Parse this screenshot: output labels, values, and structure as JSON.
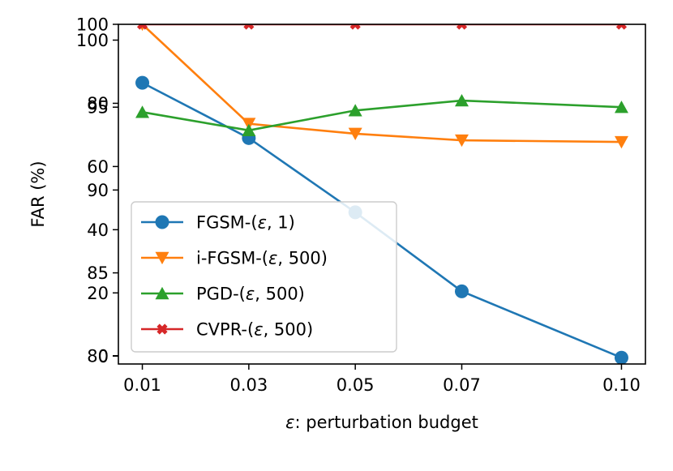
{
  "chart_data": {
    "type": "line",
    "title": "",
    "xlabel_symbol": "ε",
    "xlabel_rest": ": perturbation budget",
    "ylabel": "FAR (%)",
    "x": [
      0.01,
      0.03,
      0.05,
      0.07,
      0.1
    ],
    "x_tick_labels": [
      "0.01",
      "0.03",
      "0.05",
      "0.07",
      "0.10"
    ],
    "xlim": [
      0.0055,
      0.1045
    ],
    "left_axis": {
      "ylim": [
        -2.5,
        105
      ],
      "ticks": [
        0,
        20,
        40,
        60,
        80,
        100
      ],
      "tick_labels": [
        "0",
        "20",
        "40",
        "60",
        "80",
        "100"
      ]
    },
    "right_axis": {
      "ylim": [
        79.5,
        100.0
      ],
      "ticks": [
        80,
        85,
        90,
        95,
        100
      ],
      "tick_labels": [
        "80",
        "85",
        "90",
        "95",
        "100"
      ]
    },
    "series": [
      {
        "name": "FGSM-",
        "sym": "ε",
        "tail": ", 1)",
        "color": "#1f77b4",
        "marker": "circle",
        "axis": "left",
        "values": [
          86.5,
          69.0,
          45.5,
          20.5,
          -0.5
        ]
      },
      {
        "name": "i-FGSM-",
        "sym": "ε",
        "tail": ", 500)",
        "color": "#ff7f0e",
        "marker": "triangle-down",
        "axis": "right",
        "values": [
          100.0,
          94.0,
          93.4,
          93.0,
          92.9
        ]
      },
      {
        "name": "PGD-",
        "sym": "ε",
        "tail": ", 500)",
        "color": "#2ca02c",
        "marker": "triangle-up",
        "axis": "right",
        "values": [
          94.7,
          93.6,
          94.8,
          95.4,
          95.0
        ]
      },
      {
        "name": "CVPR-",
        "sym": "ε",
        "tail": ", 500)",
        "color": "#d62728",
        "marker": "x",
        "axis": "right",
        "values": [
          100.0,
          100.0,
          100.0,
          100.0,
          100.0
        ]
      }
    ],
    "legend_position": "lower-left",
    "grid": false
  }
}
